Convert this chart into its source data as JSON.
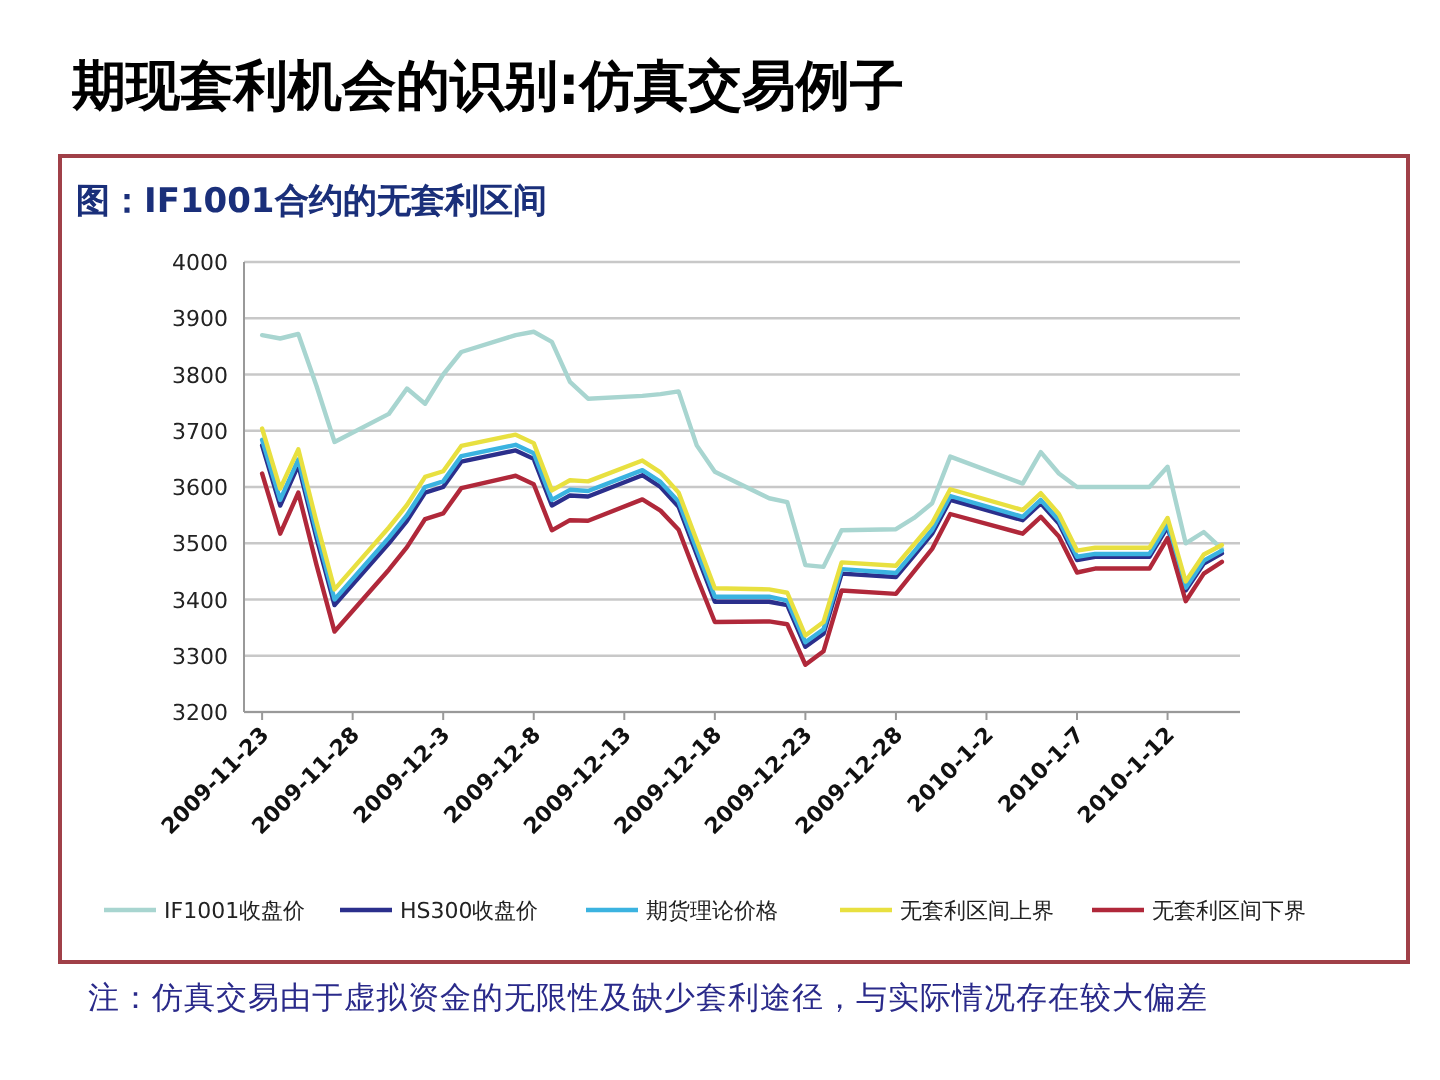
{
  "chart_data": {
    "type": "line",
    "title": "期现套利机会的识别:仿真交易例子",
    "subtitle": "图：IF1001合约的无套利区间",
    "annotations": [
      "注：仿真交易由于虚拟资金的无限性及缺少套利途径，与实际情况存在较大偏差"
    ],
    "x": [
      "2009-11-23",
      "2009-11-24",
      "2009-11-25",
      "2009-11-26",
      "2009-11-27",
      "2009-11-30",
      "2009-12-01",
      "2009-12-02",
      "2009-12-03",
      "2009-12-04",
      "2009-12-07",
      "2009-12-08",
      "2009-12-09",
      "2009-12-10",
      "2009-12-11",
      "2009-12-14",
      "2009-12-15",
      "2009-12-16",
      "2009-12-17",
      "2009-12-18",
      "2009-12-21",
      "2009-12-22",
      "2009-12-23",
      "2009-12-24",
      "2009-12-25",
      "2009-12-28",
      "2009-12-29",
      "2009-12-30",
      "2009-12-31",
      "2010-01-04",
      "2010-01-05",
      "2010-01-06",
      "2010-01-07",
      "2010-01-08",
      "2010-01-11",
      "2010-01-12",
      "2010-01-13",
      "2010-01-14",
      "2010-01-15"
    ],
    "series": [
      {
        "name": "IF1001收盘价",
        "color": "#a8d5d0",
        "values": [
          3870,
          3864,
          3872,
          3780,
          3680,
          3730,
          3775,
          3748,
          3800,
          3840,
          3870,
          3876,
          3858,
          3787,
          3757,
          3762,
          3765,
          3770,
          3674,
          3627,
          3580,
          3573,
          3461,
          3458,
          3523,
          3525,
          3545,
          3571,
          3654,
          3606,
          3662,
          3624,
          3600,
          3600,
          3600,
          3636,
          3500,
          3520,
          3490
        ]
      },
      {
        "name": "HS300收盘价",
        "color": "#2b2f8c",
        "values": [
          3674,
          3567,
          3639,
          3510,
          3390,
          3500,
          3540,
          3590,
          3600,
          3645,
          3665,
          3650,
          3567,
          3585,
          3583,
          3621,
          3600,
          3565,
          3480,
          3396,
          3396,
          3390,
          3316,
          3339,
          3446,
          3440,
          3478,
          3517,
          3577,
          3541,
          3571,
          3535,
          3470,
          3476,
          3476,
          3529,
          3416,
          3464,
          3482
        ]
      },
      {
        "name": "期货理论价格",
        "color": "#3bb3e0",
        "values": [
          3684,
          3577,
          3649,
          3520,
          3400,
          3510,
          3550,
          3600,
          3610,
          3655,
          3675,
          3660,
          3577,
          3595,
          3593,
          3630,
          3609,
          3574,
          3489,
          3405,
          3405,
          3398,
          3324,
          3347,
          3454,
          3447,
          3485,
          3524,
          3584,
          3547,
          3577,
          3541,
          3476,
          3481,
          3481,
          3534,
          3421,
          3469,
          3487
        ]
      },
      {
        "name": "无套利区间上界",
        "color": "#e8e040",
        "values": [
          3704,
          3597,
          3667,
          3538,
          3418,
          3528,
          3568,
          3618,
          3628,
          3673,
          3693,
          3678,
          3594,
          3612,
          3610,
          3647,
          3626,
          3590,
          3505,
          3420,
          3418,
          3412,
          3336,
          3360,
          3466,
          3460,
          3498,
          3536,
          3596,
          3559,
          3589,
          3552,
          3487,
          3492,
          3492,
          3545,
          3432,
          3480,
          3497
        ]
      },
      {
        "name": "无套利区间下界",
        "color": "#b0283a",
        "values": [
          3624,
          3517,
          3590,
          3462,
          3343,
          3453,
          3493,
          3543,
          3553,
          3598,
          3620,
          3605,
          3523,
          3541,
          3540,
          3578,
          3558,
          3524,
          3440,
          3360,
          3361,
          3356,
          3284,
          3308,
          3416,
          3410,
          3450,
          3490,
          3552,
          3517,
          3547,
          3512,
          3448,
          3455,
          3455,
          3509,
          3397,
          3446,
          3467
        ]
      }
    ],
    "xlim": [
      "2009-11-22",
      "2010-01-16"
    ],
    "xticks": [
      {
        "value": "2009-11-23",
        "label": "2009-11-23"
      },
      {
        "value": "2009-11-28",
        "label": "2009-11-28"
      },
      {
        "value": "2009-12-03",
        "label": "2009-12-3"
      },
      {
        "value": "2009-12-08",
        "label": "2009-12-8"
      },
      {
        "value": "2009-12-13",
        "label": "2009-12-13"
      },
      {
        "value": "2009-12-18",
        "label": "2009-12-18"
      },
      {
        "value": "2009-12-23",
        "label": "2009-12-23"
      },
      {
        "value": "2009-12-28",
        "label": "2009-12-28"
      },
      {
        "value": "2010-01-02",
        "label": "2010-1-2"
      },
      {
        "value": "2010-01-07",
        "label": "2010-1-7"
      },
      {
        "value": "2010-01-12",
        "label": "2010-1-12"
      }
    ],
    "ylim": [
      3200,
      4000
    ],
    "yticks": [
      3200,
      3300,
      3400,
      3500,
      3600,
      3700,
      3800,
      3900,
      4000
    ],
    "grid": "y",
    "legend": "bottom"
  }
}
